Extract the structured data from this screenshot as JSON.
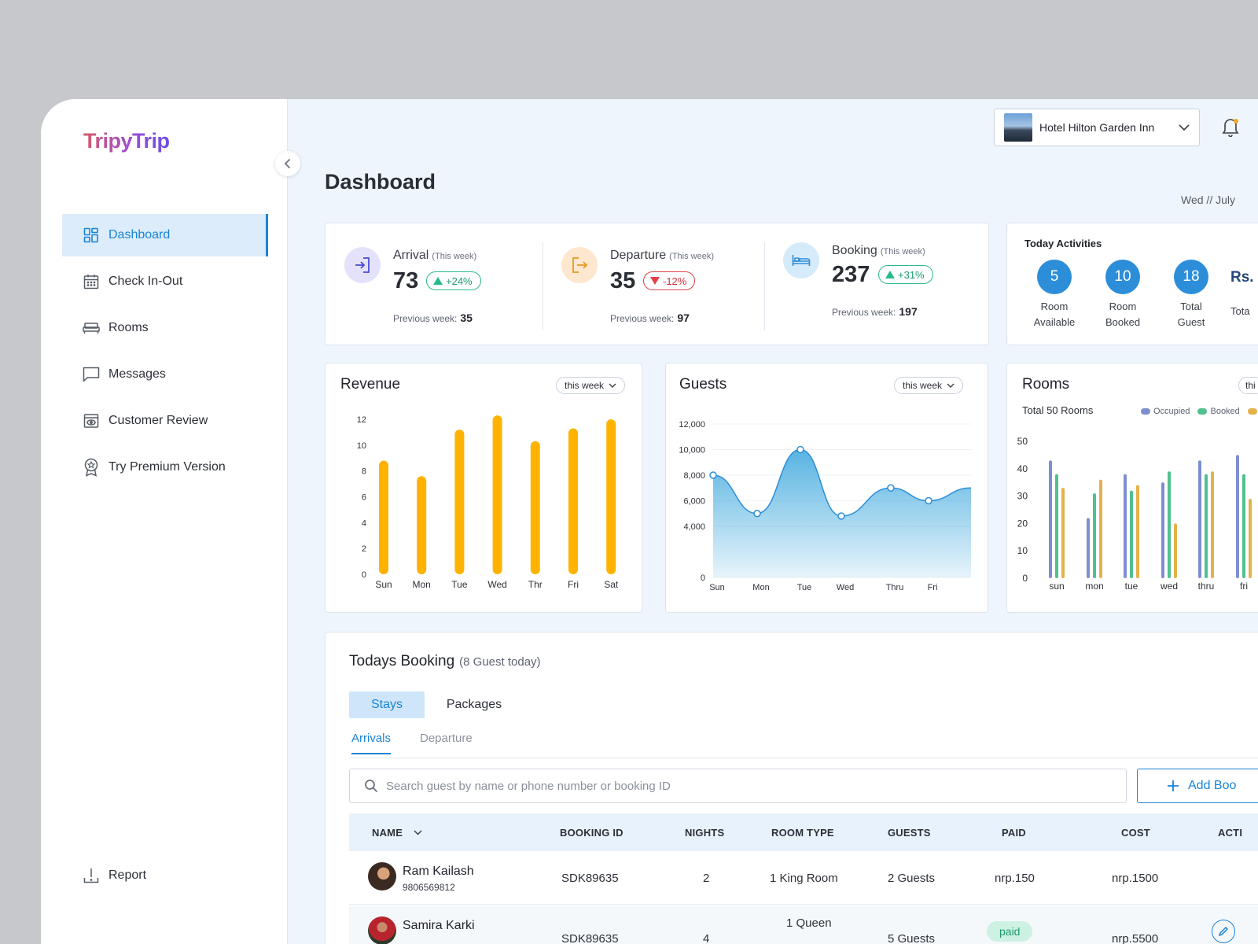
{
  "brand": {
    "name": "TripyTrip"
  },
  "sidebar": {
    "items": [
      {
        "label": "Dashboard",
        "icon": "grid-icon",
        "active": true
      },
      {
        "label": "Check In-Out",
        "icon": "calendar-icon"
      },
      {
        "label": "Rooms",
        "icon": "bed-icon"
      },
      {
        "label": "Messages",
        "icon": "chat-icon"
      },
      {
        "label": "Customer Review",
        "icon": "eye-window-icon"
      },
      {
        "label": "Try Premium Version",
        "icon": "award-icon"
      }
    ],
    "report_label": "Report"
  },
  "header": {
    "hotel": "Hotel Hilton Garden Inn",
    "page_title": "Dashboard",
    "date": "Wed  // July"
  },
  "stats": {
    "arrival": {
      "label": "Arrival",
      "period": "(This week)",
      "value": "73",
      "change": "+24%",
      "prev_label": "Previous week:",
      "prev_value": "35"
    },
    "departure": {
      "label": "Departure",
      "period": "(This week)",
      "value": "35",
      "change": "-12%",
      "prev_label": "Previous week:",
      "prev_value": "97"
    },
    "booking": {
      "label": "Booking",
      "period": "(This week)",
      "value": "237",
      "change": "+31%",
      "prev_label": "Previous week:",
      "prev_value": "197"
    }
  },
  "activities": {
    "title": "Today Activities",
    "items": [
      {
        "value": "5",
        "line1": "Room",
        "line2": "Available"
      },
      {
        "value": "10",
        "line1": "Room",
        "line2": "Booked"
      },
      {
        "value": "18",
        "line1": "Total",
        "line2": "Guest"
      }
    ],
    "revenue_value": "Rs.",
    "revenue_label": "Tota"
  },
  "charts": {
    "revenue": {
      "title": "Revenue",
      "filter": "this week"
    },
    "guests": {
      "title": "Guests",
      "filter": "this week"
    },
    "rooms": {
      "title": "Rooms",
      "filter": "thi",
      "subtitle": "Total 50 Rooms",
      "legend": [
        "Occupied",
        "Booked"
      ]
    }
  },
  "chart_data": [
    {
      "type": "bar",
      "title": "Revenue",
      "categories": [
        "Sun",
        "Mon",
        "Tue",
        "Wed",
        "Thr",
        "Fri",
        "Sat"
      ],
      "values": [
        8.8,
        7.6,
        11.2,
        12.3,
        10.3,
        11.3,
        12.0
      ],
      "ylim": [
        0,
        12
      ],
      "yticks": [
        0,
        2,
        4,
        6,
        8,
        10,
        12
      ],
      "color": "#ffb300"
    },
    {
      "type": "area",
      "title": "Guests",
      "categories": [
        "Sun",
        "Mon",
        "Tue",
        "Wed",
        "Thru",
        "Fri"
      ],
      "values": [
        8000,
        5000,
        10000,
        4800,
        7000,
        6000
      ],
      "end_value": 7000,
      "ylim": [
        0,
        12000
      ],
      "yticks": [
        "0",
        "4,000",
        "6,000",
        "8,000",
        "10,000",
        "12,000"
      ],
      "ytick_values": [
        0,
        4000,
        6000,
        8000,
        10000,
        12000
      ],
      "color": "#3aa6dd"
    },
    {
      "type": "bar",
      "title": "Rooms",
      "categories": [
        "sun",
        "mon",
        "tue",
        "wed",
        "thru",
        "fri"
      ],
      "series": [
        {
          "name": "Occupied",
          "values": [
            43,
            22,
            38,
            35,
            43,
            45
          ],
          "color": "#7d8fd0"
        },
        {
          "name": "Booked",
          "values": [
            38,
            31,
            32,
            39,
            38,
            38
          ],
          "color": "#4fc18e"
        },
        {
          "values": [
            33,
            36,
            34,
            20,
            39,
            29
          ],
          "color": "#e4b24a"
        }
      ],
      "ylim": [
        0,
        50
      ],
      "yticks": [
        0,
        10,
        20,
        30,
        40,
        50
      ]
    }
  ],
  "booking": {
    "title": "Todays Booking",
    "subtitle": "(8 Guest today)",
    "tabs": [
      "Stays",
      "Packages"
    ],
    "subtabs": [
      "Arrivals",
      "Departure"
    ],
    "search_placeholder": "Search guest by name or phone number or booking ID",
    "add_label": "Add Boo",
    "columns": [
      "NAME",
      "BOOKING ID",
      "NIGHTS",
      "ROOM TYPE",
      "GUESTS",
      "PAID",
      "COST",
      "ACTI"
    ],
    "rows": [
      {
        "name": "Ram Kailash",
        "phone": "9806569812",
        "booking_id": "SDK89635",
        "nights": "2",
        "room_type": "1 King Room",
        "guests": "2 Guests",
        "paid": "nrp.150",
        "cost": "nrp.1500"
      },
      {
        "name": "Samira Karki",
        "phone": "",
        "booking_id": "SDK89635",
        "nights": "4",
        "room_type": "1 Queen",
        "guests": "5 Guests",
        "paid": "paid",
        "cost": "nrp.5500"
      }
    ]
  }
}
